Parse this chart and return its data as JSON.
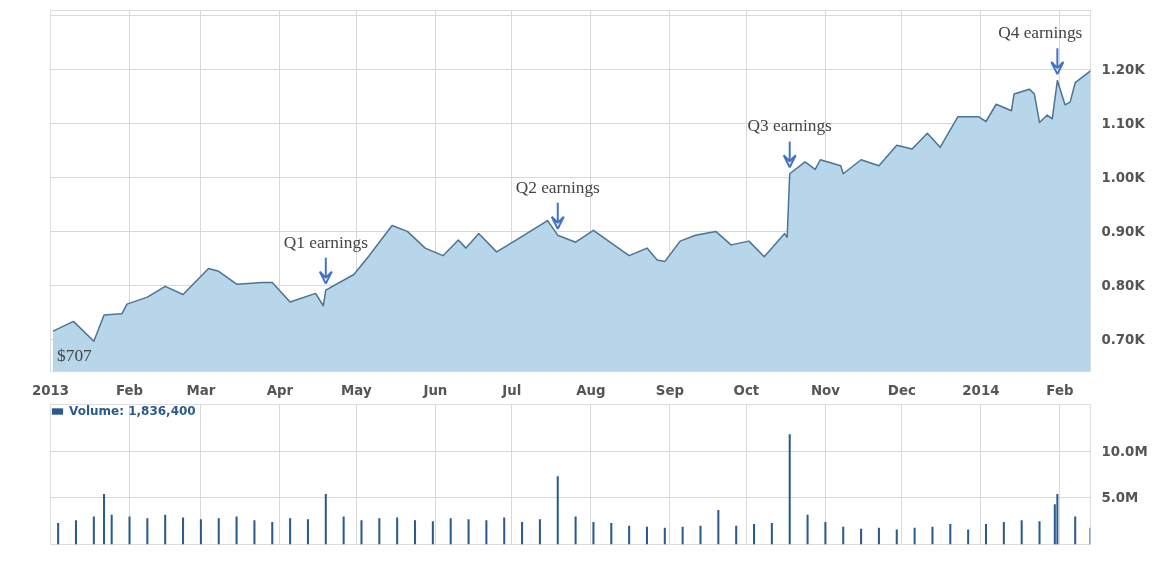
{
  "chart_data": [
    {
      "type": "area",
      "color": "#4d7393",
      "x": [
        "2013-01-02",
        "2013-01-10",
        "2013-01-18",
        "2013-01-22",
        "2013-01-29",
        "2013-01-31",
        "2013-02-08",
        "2013-02-15",
        "2013-02-22",
        "2013-03-04",
        "2013-03-08",
        "2013-03-15",
        "2013-03-25",
        "2013-03-29",
        "2013-04-05",
        "2013-04-15",
        "2013-04-18",
        "2013-04-19",
        "2013-04-30",
        "2013-05-06",
        "2013-05-15",
        "2013-05-21",
        "2013-05-28",
        "2013-06-04",
        "2013-06-10",
        "2013-06-13",
        "2013-06-18",
        "2013-06-25",
        "2013-07-02",
        "2013-07-15",
        "2013-07-19",
        "2013-07-26",
        "2013-08-02",
        "2013-08-16",
        "2013-08-23",
        "2013-08-27",
        "2013-08-30",
        "2013-09-05",
        "2013-09-11",
        "2013-09-19",
        "2013-09-25",
        "2013-10-02",
        "2013-10-08",
        "2013-10-16",
        "2013-10-17",
        "2013-10-18",
        "2013-10-24",
        "2013-10-28",
        "2013-10-30",
        "2013-11-07",
        "2013-11-08",
        "2013-11-15",
        "2013-11-22",
        "2013-11-29",
        "2013-12-05",
        "2013-12-11",
        "2013-12-16",
        "2013-12-23",
        "2013-12-31",
        "2014-01-03",
        "2014-01-07",
        "2014-01-13",
        "2014-01-14",
        "2014-01-20",
        "2014-01-22",
        "2014-01-24",
        "2014-01-27",
        "2014-01-29",
        "2014-01-31",
        "2014-02-03",
        "2014-02-05",
        "2014-02-07",
        "2014-02-13"
      ],
      "values": [
        0.715,
        0.733,
        0.696,
        0.745,
        0.747,
        0.765,
        0.778,
        0.798,
        0.783,
        0.831,
        0.826,
        0.802,
        0.805,
        0.805,
        0.769,
        0.785,
        0.762,
        0.791,
        0.82,
        0.855,
        0.911,
        0.9,
        0.869,
        0.855,
        0.884,
        0.869,
        0.896,
        0.862,
        0.882,
        0.92,
        0.893,
        0.88,
        0.902,
        0.855,
        0.869,
        0.847,
        0.844,
        0.882,
        0.893,
        0.9,
        0.875,
        0.882,
        0.853,
        0.896,
        0.889,
        1.007,
        1.029,
        1.015,
        1.033,
        1.022,
        1.007,
        1.033,
        1.022,
        1.06,
        1.053,
        1.082,
        1.056,
        1.113,
        1.113,
        1.104,
        1.136,
        1.124,
        1.155,
        1.164,
        1.155,
        1.102,
        1.116,
        1.109,
        1.18,
        1.135,
        1.14,
        1.176,
        1.198
      ],
      "xlim": [
        "2013-01-01",
        "2014-02-13"
      ],
      "xticks": [
        {
          "value": "2013-01-01",
          "label": "2013"
        },
        {
          "value": "2013-02-01",
          "label": "Feb"
        },
        {
          "value": "2013-03-01",
          "label": "Mar"
        },
        {
          "value": "2013-04-01",
          "label": "Apr"
        },
        {
          "value": "2013-05-01",
          "label": "May"
        },
        {
          "value": "2013-06-01",
          "label": "Jun"
        },
        {
          "value": "2013-07-01",
          "label": "Jul"
        },
        {
          "value": "2013-08-01",
          "label": "Aug"
        },
        {
          "value": "2013-09-01",
          "label": "Sep"
        },
        {
          "value": "2013-10-01",
          "label": "Oct"
        },
        {
          "value": "2013-11-01",
          "label": "Nov"
        },
        {
          "value": "2013-12-01",
          "label": "Dec"
        },
        {
          "value": "2014-01-01",
          "label": "2014"
        },
        {
          "value": "2014-02-01",
          "label": "Feb"
        }
      ],
      "ylim": [
        0.64,
        1.31
      ],
      "yticks": [
        {
          "value": 0.7,
          "label": "0.70K"
        },
        {
          "value": 0.8,
          "label": "0.80K"
        },
        {
          "value": 0.9,
          "label": "0.90K"
        },
        {
          "value": 1.0,
          "label": "1.00K"
        },
        {
          "value": 1.1,
          "label": "1.10K"
        },
        {
          "value": 1.2,
          "label": "1.20K"
        },
        {
          "value": 1.3,
          "label": null
        }
      ],
      "grid": true,
      "annotations": [
        {
          "text": "$707",
          "x": "2013-01-02",
          "y": 0.707
        },
        {
          "text": "Q1 earnings",
          "x": "2013-04-19",
          "y": 0.791
        },
        {
          "text": "Q2 earnings",
          "x": "2013-07-19",
          "y": 0.893
        },
        {
          "text": "Q3 earnings",
          "x": "2013-10-18",
          "y": 1.007
        },
        {
          "text": "Q4 earnings",
          "x": "2014-01-31",
          "y": 1.18
        }
      ]
    },
    {
      "type": "bar",
      "legend": "top left",
      "grid": true,
      "tick_labels": "y",
      "series": [
        {
          "name": "Volume: 1,836,400",
          "color": "#2a5b8c",
          "x": [
            "2013-01-04",
            "2013-01-11",
            "2013-01-18",
            "2013-01-22",
            "2013-01-25",
            "2013-02-01",
            "2013-02-08",
            "2013-02-15",
            "2013-02-22",
            "2013-03-01",
            "2013-03-08",
            "2013-03-15",
            "2013-03-22",
            "2013-03-29",
            "2013-04-05",
            "2013-04-12",
            "2013-04-19",
            "2013-04-26",
            "2013-05-03",
            "2013-05-10",
            "2013-05-17",
            "2013-05-24",
            "2013-05-31",
            "2013-06-07",
            "2013-06-14",
            "2013-06-21",
            "2013-06-28",
            "2013-07-05",
            "2013-07-12",
            "2013-07-19",
            "2013-07-26",
            "2013-08-02",
            "2013-08-09",
            "2013-08-16",
            "2013-08-23",
            "2013-08-30",
            "2013-09-06",
            "2013-09-13",
            "2013-09-20",
            "2013-09-27",
            "2013-10-04",
            "2013-10-11",
            "2013-10-18",
            "2013-10-25",
            "2013-11-01",
            "2013-11-08",
            "2013-11-15",
            "2013-11-22",
            "2013-11-29",
            "2013-12-06",
            "2013-12-13",
            "2013-12-20",
            "2013-12-27",
            "2014-01-03",
            "2014-01-10",
            "2014-01-17",
            "2014-01-24",
            "2014-01-30",
            "2014-01-31",
            "2014-02-07",
            "2014-02-13"
          ],
          "values": [
            2.3,
            2.6,
            3.0,
            5.4,
            3.2,
            3.0,
            2.8,
            3.2,
            2.9,
            2.7,
            2.8,
            3.0,
            2.6,
            2.4,
            2.8,
            2.7,
            5.4,
            3.0,
            2.6,
            2.8,
            2.9,
            2.6,
            2.5,
            2.8,
            2.7,
            2.6,
            2.9,
            2.4,
            2.7,
            7.3,
            3.0,
            2.4,
            2.3,
            2.0,
            1.9,
            1.8,
            1.9,
            2.0,
            3.7,
            2.0,
            2.2,
            2.3,
            11.8,
            3.2,
            2.4,
            1.9,
            1.7,
            1.8,
            1.6,
            1.8,
            1.9,
            2.2,
            1.6,
            2.2,
            2.4,
            2.6,
            2.5,
            4.3,
            5.4,
            3.0,
            1.8
          ]
        }
      ],
      "xlim": [
        "2013-01-01",
        "2014-02-13"
      ],
      "xticks": [
        {
          "value": "2013-01-01",
          "label": null
        },
        {
          "value": "2013-02-01",
          "label": null
        },
        {
          "value": "2013-03-01",
          "label": null
        },
        {
          "value": "2013-04-01",
          "label": null
        },
        {
          "value": "2013-05-01",
          "label": null
        },
        {
          "value": "2013-06-01",
          "label": null
        },
        {
          "value": "2013-07-01",
          "label": null
        },
        {
          "value": "2013-08-01",
          "label": null
        },
        {
          "value": "2013-09-01",
          "label": null
        },
        {
          "value": "2013-10-01",
          "label": null
        },
        {
          "value": "2013-11-01",
          "label": null
        },
        {
          "value": "2013-12-01",
          "label": null
        },
        {
          "value": "2014-01-01",
          "label": null
        },
        {
          "value": "2014-02-01",
          "label": null
        }
      ],
      "ylim": [
        0,
        15
      ],
      "yticks": [
        {
          "value": 5,
          "label": "5.0M"
        },
        {
          "value": 10,
          "label": "10.0M"
        }
      ]
    }
  ]
}
